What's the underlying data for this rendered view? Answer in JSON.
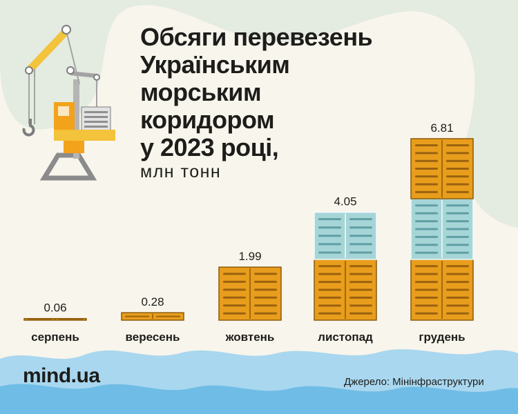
{
  "title": "Обсяги перевезень\nУкраїнським\nморським\nкоридором\nу 2023 році,",
  "unit": "млн тонн",
  "brand": "mind.ua",
  "source": {
    "label": "Джерело:",
    "value": "Мінінфраструктури"
  },
  "colors": {
    "background": "#f8f5ec",
    "blob": "#e4ebe0",
    "wave_light": "#a9d7ef",
    "wave_dark": "#6fbde6",
    "container_orange": "#e89e1c",
    "container_blue": "#a6d5d8",
    "text": "#1d1d1b"
  },
  "decoration": {
    "crane_icon": "harbor-crane-icon"
  },
  "chart_data": {
    "type": "bar",
    "categories": [
      "серпень",
      "вересень",
      "жовтень",
      "листопад",
      "грудень"
    ],
    "values": [
      0.06,
      0.28,
      1.99,
      4.05,
      6.81
    ],
    "value_labels": [
      "0.06",
      "0.28",
      "1.99",
      "4.05",
      "6.81"
    ],
    "title": "Обсяги перевезень Українським морським коридором у 2023 році,",
    "ylabel": "млн тонн",
    "ylim": [
      0,
      6.81
    ],
    "grid": false,
    "legend": "none"
  }
}
